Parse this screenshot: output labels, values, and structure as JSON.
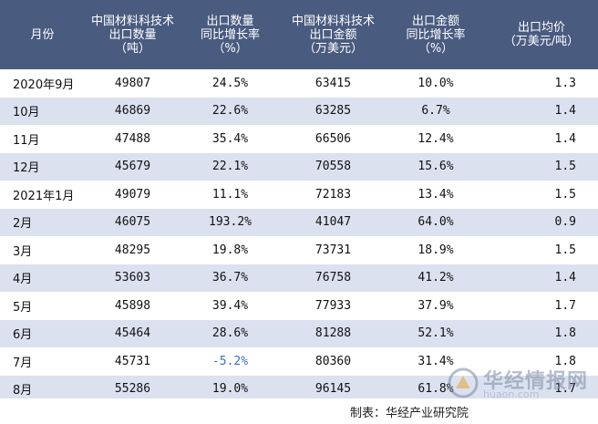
{
  "header": {
    "month": [
      "月份"
    ],
    "qty": [
      "中国材料科技术",
      "出口数量",
      "（吨）"
    ],
    "qty_growth": [
      "出口数量",
      "同比增长率",
      "（%）"
    ],
    "amount": [
      "中国材料科技术",
      "出口金额",
      "（万美元）"
    ],
    "amount_growth": [
      "出口金额",
      "同比增长率",
      "（%）"
    ],
    "price": [
      "出口均价",
      "（万美元/吨）"
    ]
  },
  "rows": [
    {
      "month": "2020年9月",
      "qty": "49807",
      "qty_growth": "24.5%",
      "amount": "63415",
      "amount_growth": "10.0%",
      "price": "1.3"
    },
    {
      "month": "10月",
      "qty": "46869",
      "qty_growth": "22.6%",
      "amount": "63285",
      "amount_growth": "6.7%",
      "price": "1.4"
    },
    {
      "month": "11月",
      "qty": "47488",
      "qty_growth": "35.4%",
      "amount": "66506",
      "amount_growth": "12.4%",
      "price": "1.4"
    },
    {
      "month": "12月",
      "qty": "45679",
      "qty_growth": "22.1%",
      "amount": "70558",
      "amount_growth": "15.6%",
      "price": "1.5"
    },
    {
      "month": "2021年1月",
      "qty": "49079",
      "qty_growth": "11.1%",
      "amount": "72183",
      "amount_growth": "13.4%",
      "price": "1.5"
    },
    {
      "month": "2月",
      "qty": "46075",
      "qty_growth": "193.2%",
      "amount": "41047",
      "amount_growth": "64.0%",
      "price": "0.9"
    },
    {
      "month": "3月",
      "qty": "48295",
      "qty_growth": "19.8%",
      "amount": "73731",
      "amount_growth": "18.9%",
      "price": "1.5"
    },
    {
      "month": "4月",
      "qty": "53603",
      "qty_growth": "36.7%",
      "amount": "76758",
      "amount_growth": "41.2%",
      "price": "1.4"
    },
    {
      "month": "5月",
      "qty": "45898",
      "qty_growth": "39.4%",
      "amount": "77933",
      "amount_growth": "37.9%",
      "price": "1.7"
    },
    {
      "month": "6月",
      "qty": "45464",
      "qty_growth": "28.6%",
      "amount": "81288",
      "amount_growth": "52.1%",
      "price": "1.8"
    },
    {
      "month": "7月",
      "qty": "45731",
      "qty_growth": "-5.2%",
      "amount": "80360",
      "amount_growth": "31.4%",
      "price": "1.8"
    },
    {
      "month": "8月",
      "qty": "55286",
      "qty_growth": "19.0%",
      "amount": "96145",
      "amount_growth": "61.8%",
      "price": "1.7"
    }
  ],
  "source": "制表：华经产业研究院",
  "watermark": {
    "name": "华经情报网",
    "url": "huaon.com"
  },
  "colors": {
    "header_bg": "#4a5b80",
    "stripe": "#dbe1ef",
    "negative": "#3b6fc7"
  }
}
